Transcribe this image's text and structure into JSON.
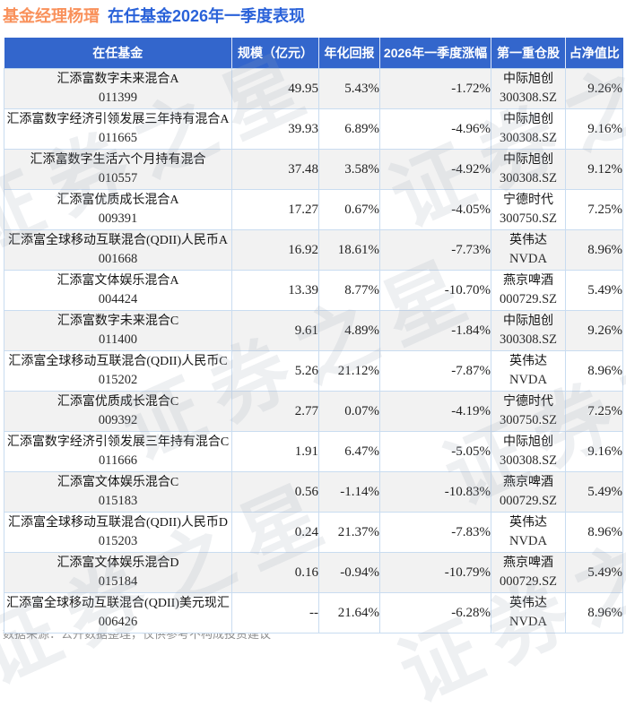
{
  "title": {
    "manager": "基金经理杨瑨",
    "subtitle": "在任基金2026年一季度表现"
  },
  "footer": {
    "text": "数据来源：公开数据整理，仅供参考不构成投资建议"
  },
  "watermark": {
    "text": "证券之星"
  },
  "colors": {
    "title_orange": "#F9915B",
    "title_blue": "#2A62D9",
    "header_bg": "#3366CC",
    "positive_red": "#E62B2B",
    "negative_green": "#1CA15C",
    "odd_row_bg": "#f2f2f2",
    "grid_line": "#c9dcf0"
  },
  "chart_data": {
    "type": "table",
    "title": "基金经理杨瑨 在任基金2026年一季度表现",
    "columns": [
      "在任基金",
      "规模（亿元）",
      "年化回报",
      "2026年一季度涨幅",
      "第一重仓股",
      "占净值比"
    ],
    "rows": [
      {
        "name": "汇添富数字未来混合A",
        "code": "011399",
        "scale": "49.95",
        "annual": "5.43%",
        "q1": "-1.72%",
        "holding": "中际旭创",
        "ticker": "300308.SZ",
        "weight": "9.26%"
      },
      {
        "name": "汇添富数字经济引领发展三年持有混合A",
        "code": "011665",
        "scale": "39.93",
        "annual": "6.89%",
        "q1": "-4.96%",
        "holding": "中际旭创",
        "ticker": "300308.SZ",
        "weight": "9.16%"
      },
      {
        "name": "汇添富数字生活六个月持有混合",
        "code": "010557",
        "scale": "37.48",
        "annual": "3.58%",
        "q1": "-4.92%",
        "holding": "中际旭创",
        "ticker": "300308.SZ",
        "weight": "9.12%"
      },
      {
        "name": "汇添富优质成长混合A",
        "code": "009391",
        "scale": "17.27",
        "annual": "0.67%",
        "q1": "-4.05%",
        "holding": "宁德时代",
        "ticker": "300750.SZ",
        "weight": "7.25%"
      },
      {
        "name": "汇添富全球移动互联混合(QDII)人民币A",
        "code": "001668",
        "scale": "16.92",
        "annual": "18.61%",
        "q1": "-7.73%",
        "holding": "英伟达",
        "ticker": "NVDA",
        "weight": "8.96%"
      },
      {
        "name": "汇添富文体娱乐混合A",
        "code": "004424",
        "scale": "13.39",
        "annual": "8.77%",
        "q1": "-10.70%",
        "holding": "燕京啤酒",
        "ticker": "000729.SZ",
        "weight": "5.49%"
      },
      {
        "name": "汇添富数字未来混合C",
        "code": "011400",
        "scale": "9.61",
        "annual": "4.89%",
        "q1": "-1.84%",
        "holding": "中际旭创",
        "ticker": "300308.SZ",
        "weight": "9.26%"
      },
      {
        "name": "汇添富全球移动互联混合(QDII)人民币C",
        "code": "015202",
        "scale": "5.26",
        "annual": "21.12%",
        "q1": "-7.87%",
        "holding": "英伟达",
        "ticker": "NVDA",
        "weight": "8.96%"
      },
      {
        "name": "汇添富优质成长混合C",
        "code": "009392",
        "scale": "2.77",
        "annual": "0.07%",
        "q1": "-4.19%",
        "holding": "宁德时代",
        "ticker": "300750.SZ",
        "weight": "7.25%"
      },
      {
        "name": "汇添富数字经济引领发展三年持有混合C",
        "code": "011666",
        "scale": "1.91",
        "annual": "6.47%",
        "q1": "-5.05%",
        "holding": "中际旭创",
        "ticker": "300308.SZ",
        "weight": "9.16%"
      },
      {
        "name": "汇添富文体娱乐混合C",
        "code": "015183",
        "scale": "0.56",
        "annual": "-1.14%",
        "q1": "-10.83%",
        "holding": "燕京啤酒",
        "ticker": "000729.SZ",
        "weight": "5.49%"
      },
      {
        "name": "汇添富全球移动互联混合(QDII)人民币D",
        "code": "015203",
        "scale": "0.24",
        "annual": "21.37%",
        "q1": "-7.83%",
        "holding": "英伟达",
        "ticker": "NVDA",
        "weight": "8.96%"
      },
      {
        "name": "汇添富文体娱乐混合D",
        "code": "015184",
        "scale": "0.16",
        "annual": "-0.94%",
        "q1": "-10.79%",
        "holding": "燕京啤酒",
        "ticker": "000729.SZ",
        "weight": "5.49%"
      },
      {
        "name": "汇添富全球移动互联混合(QDII)美元现汇",
        "code": "006426",
        "scale": "--",
        "annual": "21.64%",
        "q1": "-6.28%",
        "holding": "英伟达",
        "ticker": "NVDA",
        "weight": "8.96%"
      }
    ]
  }
}
